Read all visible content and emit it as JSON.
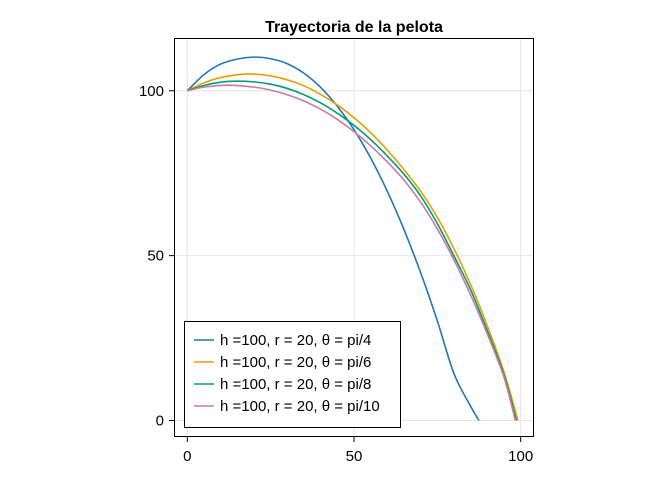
{
  "chart_data": {
    "type": "line",
    "title": "Trayectoria de la pelota",
    "xlabel": "",
    "ylabel": "",
    "xlim": [
      -4,
      104
    ],
    "ylim": [
      -5,
      116
    ],
    "xticks": [
      0,
      50,
      100
    ],
    "yticks": [
      0,
      50,
      100
    ],
    "grid": true,
    "legend_position": "bottom-left",
    "series": [
      {
        "name": "h =100, r = 20, θ = pi/4",
        "color": "#1f77b4",
        "x": [
          0,
          5,
          10,
          15,
          20.4,
          25,
          30,
          35,
          40,
          45,
          50,
          55,
          60,
          65,
          70,
          75,
          80,
          85,
          87.5
        ],
        "y": [
          100,
          104.9,
          108.1,
          109.6,
          110.2,
          109.7,
          108.2,
          105.3,
          101,
          95.3,
          88.2,
          79.6,
          69.5,
          57.9,
          44.8,
          30.2,
          14.2,
          4.3,
          0
        ]
      },
      {
        "name": "h =100, r = 20, θ = pi/6",
        "color": "#e69f00",
        "x": [
          0,
          5,
          10,
          17.7,
          25,
          30,
          35,
          40,
          45,
          50,
          55,
          60,
          65,
          70,
          75,
          80,
          85,
          90,
          95,
          99.2
        ],
        "y": [
          100,
          102.4,
          104,
          105.1,
          104.5,
          103.3,
          101.5,
          98.9,
          95.7,
          91.8,
          87.3,
          82,
          76.1,
          69.5,
          61.6,
          52.1,
          41.2,
          28.7,
          14.7,
          0
        ]
      },
      {
        "name": "h =100, r = 20, θ = pi/8",
        "color": "#009e73",
        "x": [
          0,
          5,
          10,
          14.4,
          20,
          25,
          30,
          35,
          40,
          45,
          50,
          55,
          60,
          65,
          70,
          75,
          80,
          85,
          90,
          95,
          98.7
        ],
        "y": [
          100,
          101.6,
          102.6,
          102.9,
          102.7,
          102,
          100.7,
          98.8,
          96.3,
          93.2,
          89.5,
          85.2,
          80.2,
          74.7,
          68.1,
          59.7,
          49.9,
          39.6,
          27.2,
          13.8,
          0
        ]
      },
      {
        "name": "h =100, r = 20, θ = pi/10",
        "color": "#cc79a7",
        "x": [
          0,
          5,
          12,
          20,
          25,
          30,
          35,
          40,
          45,
          50,
          55,
          60,
          65,
          70,
          75,
          80,
          85,
          90,
          95,
          98.4
        ],
        "y": [
          100,
          101.1,
          101.7,
          101.1,
          100.2,
          98.8,
          96.9,
          94.4,
          91.3,
          87.6,
          83.3,
          78.4,
          72.9,
          66.2,
          58.1,
          48.7,
          38,
          26.2,
          13.1,
          0
        ]
      }
    ]
  }
}
